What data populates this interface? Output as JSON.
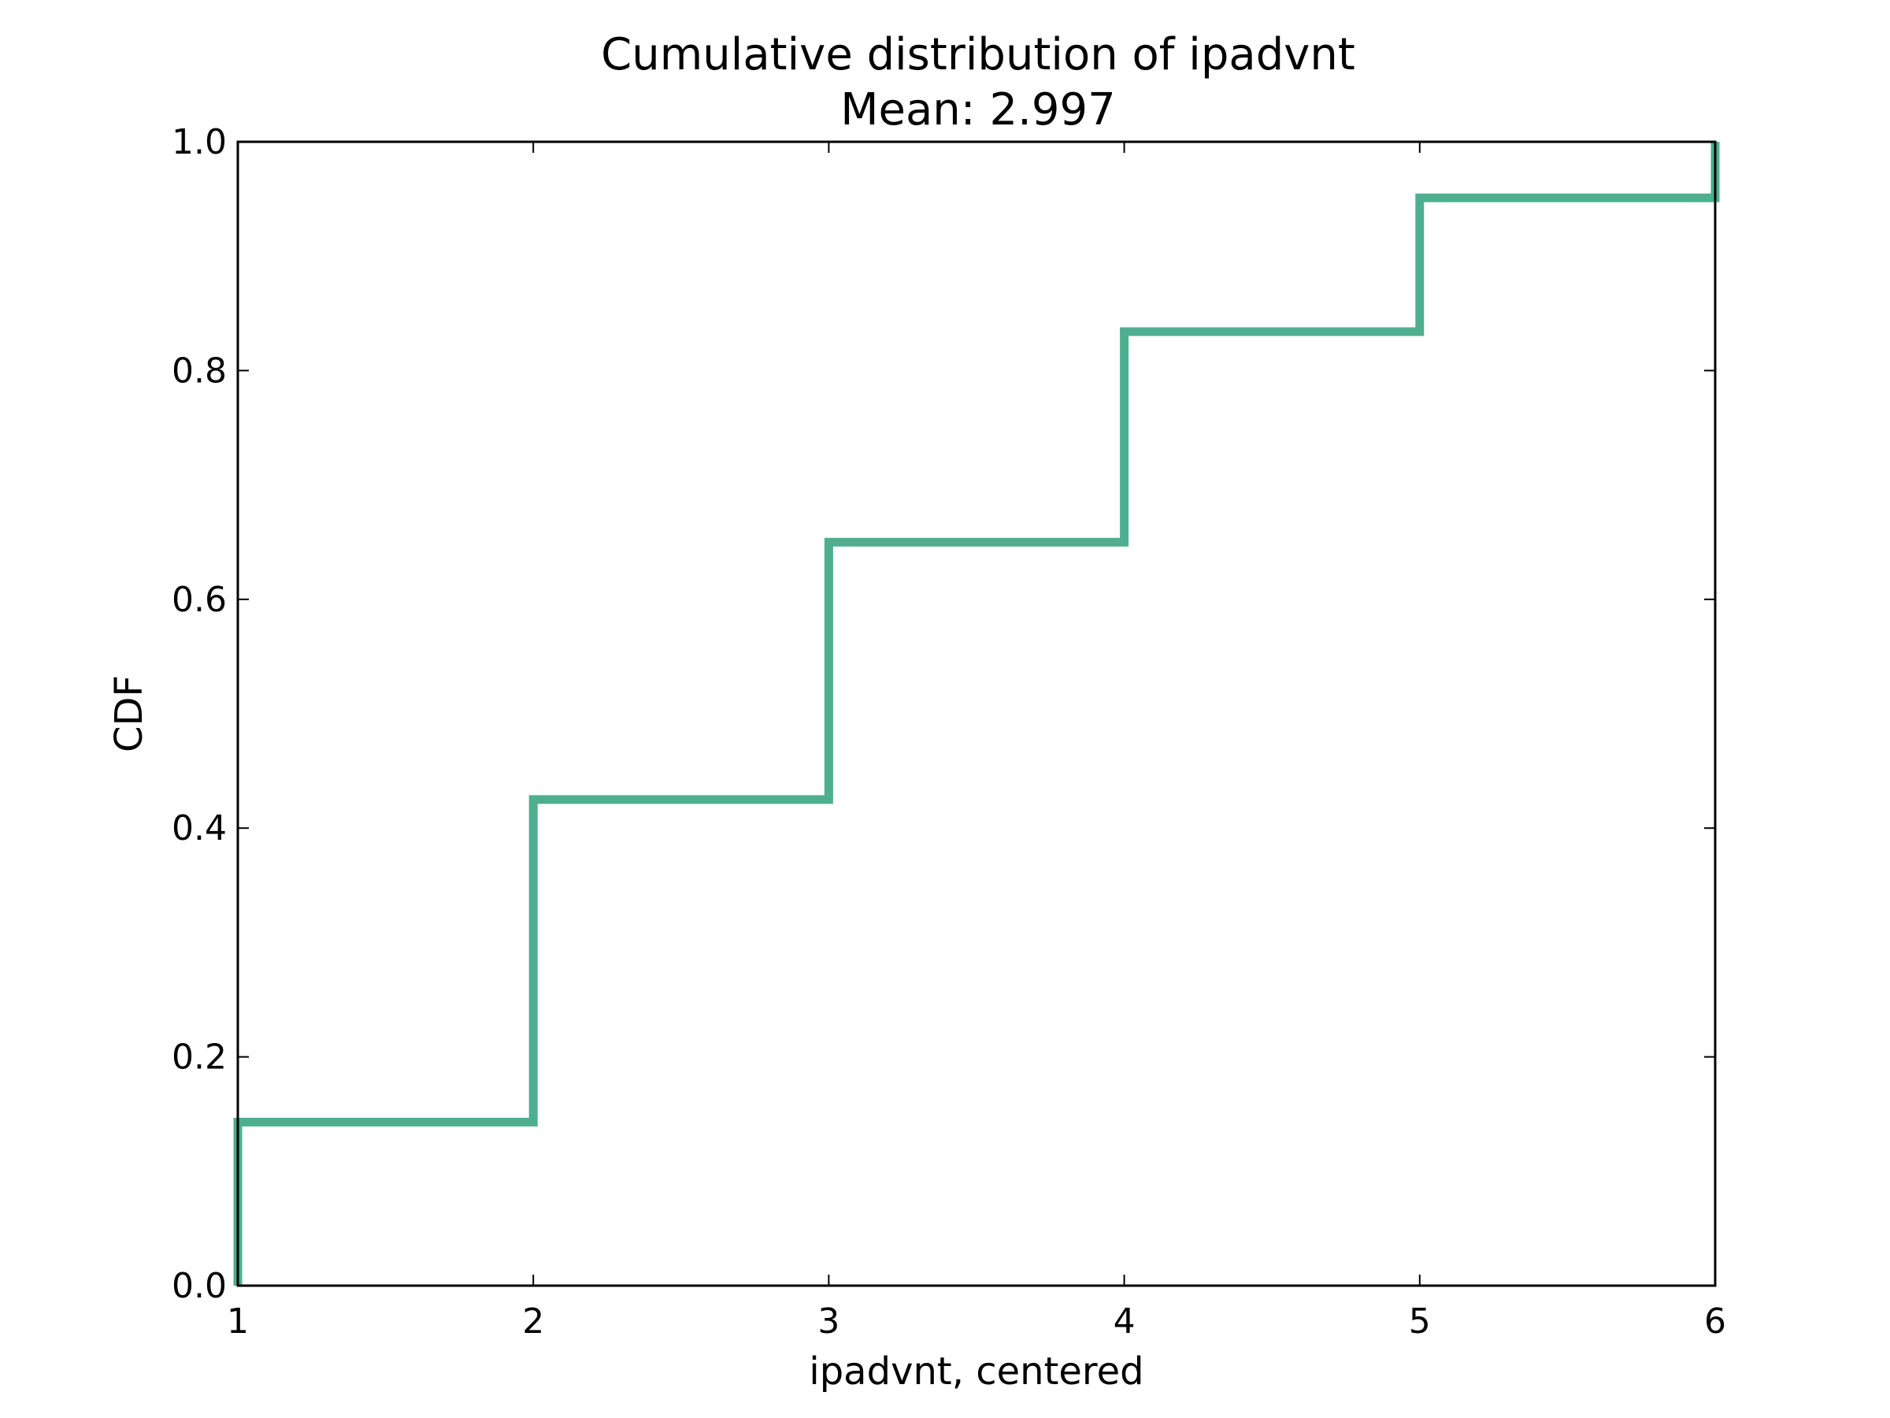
{
  "chart_data": {
    "type": "line",
    "step": "post",
    "title": "Cumulative distribution of ipadvnt",
    "subtitle": "Mean: 2.997",
    "xlabel": "ipadvnt, centered",
    "ylabel": "CDF",
    "xlim": [
      1,
      6
    ],
    "ylim": [
      0,
      1
    ],
    "x_ticks": [
      "1",
      "2",
      "3",
      "4",
      "5",
      "6"
    ],
    "y_ticks": [
      "0.0",
      "0.2",
      "0.4",
      "0.6",
      "0.8",
      "1.0"
    ],
    "grid": false,
    "series": [
      {
        "x": [
          1,
          1,
          2,
          2,
          3,
          3,
          4,
          4,
          5,
          5,
          6,
          6
        ],
        "y": [
          0,
          0.143,
          0.143,
          0.425,
          0.425,
          0.65,
          0.65,
          0.834,
          0.834,
          0.951,
          0.951,
          1.0
        ],
        "color": "#4daf8e"
      }
    ]
  }
}
